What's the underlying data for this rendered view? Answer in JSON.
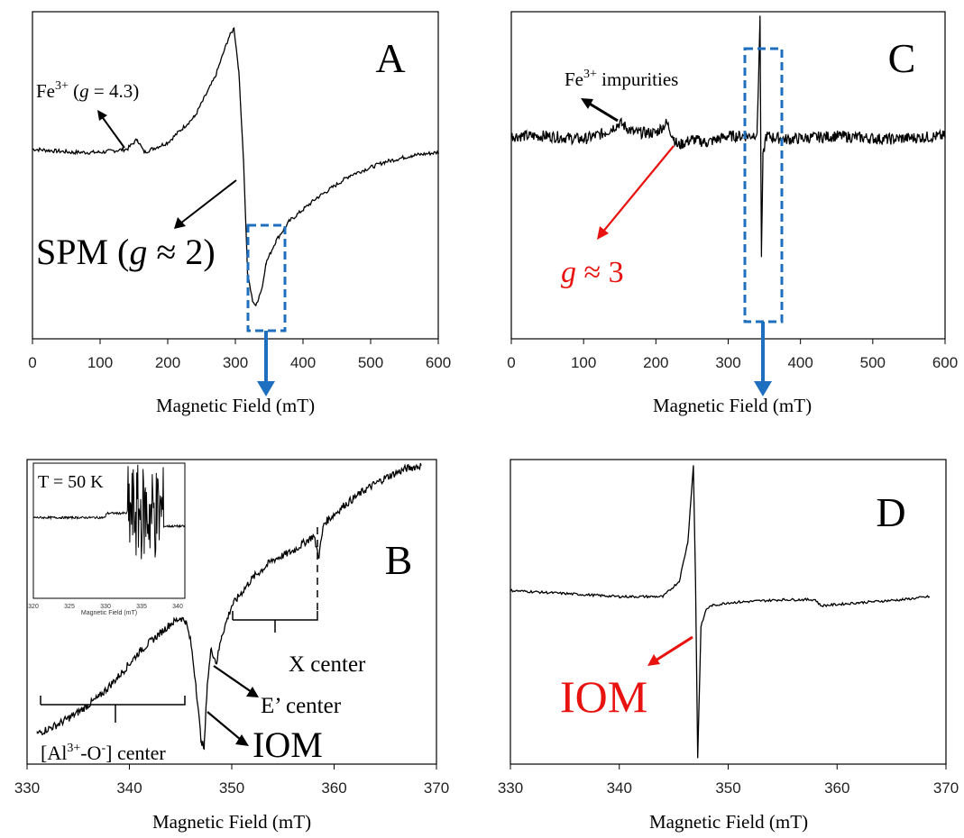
{
  "chart_data": [
    {
      "id": "A",
      "type": "line",
      "panel_label": "A",
      "xlabel": "Magnetic Field (mT)",
      "xlim": [
        0,
        600
      ],
      "xticks": [
        0,
        100,
        200,
        300,
        400,
        500,
        600
      ],
      "series": [
        {
          "x": [
            0,
            60,
            100,
            140,
            155,
            165,
            200,
            240,
            270,
            290,
            298,
            305,
            312,
            318,
            325,
            330,
            335,
            340,
            345,
            360,
            380,
            420,
            470,
            520,
            560,
            600
          ],
          "y": [
            0.58,
            0.57,
            0.57,
            0.58,
            0.61,
            0.57,
            0.6,
            0.68,
            0.8,
            0.92,
            0.95,
            0.82,
            0.55,
            0.2,
            0.12,
            0.1,
            0.13,
            0.16,
            0.23,
            0.3,
            0.36,
            0.43,
            0.5,
            0.54,
            0.56,
            0.57
          ]
        }
      ],
      "annotations": [
        {
          "text": "Fe",
          "sup": "3+",
          "italic": "g",
          "rest": " = 4.3)"
        },
        {
          "text": "SPM (",
          "italic": "g",
          "rest": " ≈ 2)"
        }
      ]
    },
    {
      "id": "B",
      "type": "line",
      "panel_label": "B",
      "xlabel": "Magnetic Field (mT)",
      "xlim": [
        330,
        370
      ],
      "xticks": [
        330,
        340,
        350,
        360,
        370
      ],
      "series": [
        {
          "x": [
            331,
            333,
            335,
            337,
            339,
            341,
            343,
            344,
            345,
            345.5,
            346,
            346.5,
            347,
            347.3,
            347.6,
            348,
            348.5,
            349,
            350,
            352,
            354,
            356,
            358,
            358.5,
            359,
            361,
            363,
            365,
            367,
            368.5
          ],
          "y": [
            0.1,
            0.13,
            0.17,
            0.22,
            0.29,
            0.37,
            0.43,
            0.46,
            0.48,
            0.47,
            0.4,
            0.26,
            0.08,
            0.05,
            0.26,
            0.38,
            0.33,
            0.42,
            0.52,
            0.61,
            0.67,
            0.7,
            0.75,
            0.68,
            0.79,
            0.85,
            0.9,
            0.94,
            0.97,
            0.98
          ]
        }
      ],
      "inset": {
        "title": "T = 50 K",
        "xlabel": "Magnetic Field (mT)",
        "xticks": [
          320,
          325,
          330,
          335,
          340
        ],
        "xlim": [
          320,
          341
        ]
      },
      "annotations": [
        {
          "text": "X center"
        },
        {
          "text": "E’ center"
        },
        {
          "text": "IOM"
        },
        {
          "text": "[Al",
          "sup": "3+",
          "mid": "-O",
          "sup2": "-",
          "rest": "]  center"
        }
      ]
    },
    {
      "id": "C",
      "type": "line",
      "panel_label": "C",
      "xlabel": "Magnetic Field (mT)",
      "xlim": [
        0,
        600
      ],
      "xticks": [
        0,
        100,
        200,
        300,
        400,
        500,
        600
      ],
      "series": [
        {
          "x": [
            0,
            50,
            100,
            130,
            150,
            170,
            200,
            215,
            230,
            250,
            270,
            300,
            330,
            340,
            344,
            346,
            348,
            352,
            380,
            450,
            520,
            600
          ],
          "y": [
            0.62,
            0.62,
            0.61,
            0.63,
            0.66,
            0.63,
            0.63,
            0.66,
            0.59,
            0.61,
            0.6,
            0.62,
            0.62,
            0.63,
            0.98,
            0.25,
            0.55,
            0.62,
            0.61,
            0.62,
            0.61,
            0.62
          ]
        }
      ],
      "annotations": [
        {
          "text": "Fe",
          "sup": "3+",
          "rest": " impurities"
        },
        {
          "italic": "g",
          "rest": " ≈ 3"
        }
      ]
    },
    {
      "id": "D",
      "type": "line",
      "panel_label": "D",
      "xlabel": "Magnetic Field (mT)",
      "xlim": [
        330,
        370
      ],
      "xticks": [
        330,
        340,
        350,
        360,
        370
      ],
      "series": [
        {
          "x": [
            330,
            335,
            340,
            344,
            345.5,
            346.3,
            346.8,
            347.0,
            347.2,
            347.5,
            348,
            348.5,
            350,
            355,
            358,
            358.5,
            362,
            366,
            368.5
          ],
          "y": [
            0.57,
            0.56,
            0.55,
            0.55,
            0.6,
            0.73,
            0.98,
            0.6,
            0.02,
            0.45,
            0.51,
            0.52,
            0.53,
            0.54,
            0.54,
            0.52,
            0.53,
            0.54,
            0.55
          ]
        }
      ],
      "annotations": [
        {
          "text": "IOM"
        }
      ]
    }
  ]
}
